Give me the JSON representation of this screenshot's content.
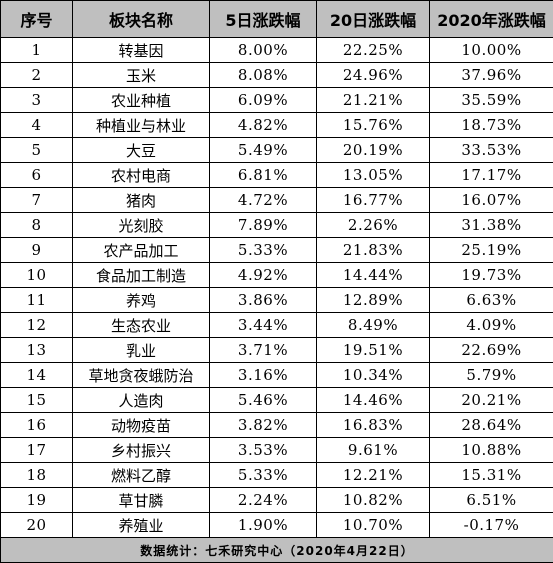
{
  "table": {
    "headers": [
      "序号",
      "板块名称",
      "5日涨跌幅",
      "20日涨跌幅",
      "2020年涨跌幅"
    ],
    "rows": [
      [
        "1",
        "转基因",
        "8.00%",
        "22.25%",
        "10.00%"
      ],
      [
        "2",
        "玉米",
        "8.08%",
        "24.96%",
        "37.96%"
      ],
      [
        "3",
        "农业种植",
        "6.09%",
        "21.21%",
        "35.59%"
      ],
      [
        "4",
        "种植业与林业",
        "4.82%",
        "15.76%",
        "18.73%"
      ],
      [
        "5",
        "大豆",
        "5.49%",
        "20.19%",
        "33.53%"
      ],
      [
        "6",
        "农村电商",
        "6.81%",
        "13.05%",
        "17.17%"
      ],
      [
        "7",
        "猪肉",
        "4.72%",
        "16.77%",
        "16.07%"
      ],
      [
        "8",
        "光刻胶",
        "7.89%",
        "2.26%",
        "31.38%"
      ],
      [
        "9",
        "农产品加工",
        "5.33%",
        "21.83%",
        "25.19%"
      ],
      [
        "10",
        "食品加工制造",
        "4.92%",
        "14.44%",
        "19.73%"
      ],
      [
        "11",
        "养鸡",
        "3.86%",
        "12.89%",
        "6.63%"
      ],
      [
        "12",
        "生态农业",
        "3.44%",
        "8.49%",
        "4.09%"
      ],
      [
        "13",
        "乳业",
        "3.71%",
        "19.51%",
        "22.69%"
      ],
      [
        "14",
        "草地贪夜蛾防治",
        "3.16%",
        "10.34%",
        "5.79%"
      ],
      [
        "15",
        "人造肉",
        "5.46%",
        "14.46%",
        "20.21%"
      ],
      [
        "16",
        "动物疫苗",
        "3.82%",
        "16.83%",
        "28.64%"
      ],
      [
        "17",
        "乡村振兴",
        "3.53%",
        "9.61%",
        "10.88%"
      ],
      [
        "18",
        "燃料乙醇",
        "5.33%",
        "12.21%",
        "15.31%"
      ],
      [
        "19",
        "草甘膦",
        "2.24%",
        "10.82%",
        "6.51%"
      ],
      [
        "20",
        "养殖业",
        "1.90%",
        "10.70%",
        "-0.17%"
      ]
    ],
    "footer": "数据统计：七禾研究中心（2020年4月22日）"
  },
  "colors": {
    "header_bg": "#bfbfbf",
    "footer_bg": "#bfbfbf",
    "border": "#000000",
    "text": "#000000"
  }
}
